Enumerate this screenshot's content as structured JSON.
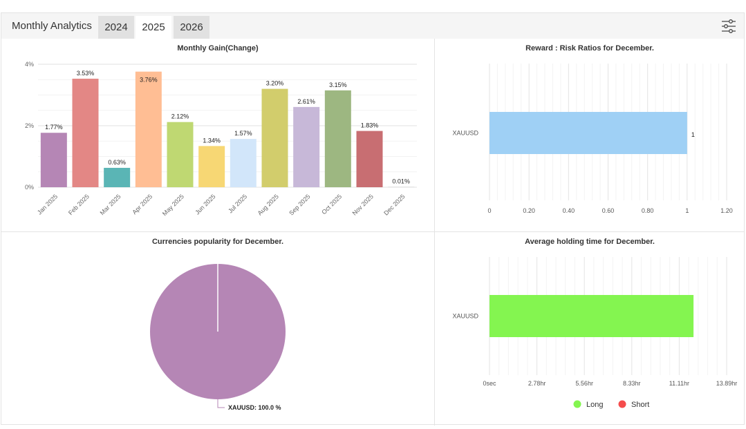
{
  "header": {
    "title": "Monthly Analytics",
    "tabs": [
      {
        "label": "2024",
        "active": false
      },
      {
        "label": "2025",
        "active": true
      },
      {
        "label": "2026",
        "active": false
      }
    ],
    "settings_icon": "sliders-icon"
  },
  "chart_data": [
    {
      "type": "bar",
      "title": "Monthly Gain(Change)",
      "categories": [
        "Jan 2025",
        "Feb 2025",
        "Mar 2025",
        "Apr 2025",
        "May 2025",
        "Jun 2025",
        "Jul 2025",
        "Aug 2025",
        "Sep 2025",
        "Oct 2025",
        "Nov 2025",
        "Dec 2025"
      ],
      "values": [
        1.77,
        3.53,
        0.63,
        3.76,
        2.12,
        1.34,
        1.57,
        3.2,
        2.61,
        3.15,
        1.83,
        0.01
      ],
      "data_labels": [
        "1.77%",
        "3.53%",
        "0.63%",
        "3.76%",
        "2.12%",
        "1.34%",
        "1.57%",
        "3.20%",
        "2.61%",
        "3.15%",
        "1.83%",
        "0.01%"
      ],
      "colors": [
        "#b586b5",
        "#e38785",
        "#5ab5b5",
        "#ffbe94",
        "#bfd872",
        "#f7d774",
        "#d2e6fa",
        "#d2cd6c",
        "#c7b8d8",
        "#9db781",
        "#c86e72",
        "#cccccc"
      ],
      "yticks": [
        "0%",
        "2%",
        "4%"
      ],
      "ylim": [
        0,
        4
      ],
      "grid": true
    },
    {
      "type": "bar",
      "orientation": "horizontal",
      "title": "Reward : Risk Ratios for December.",
      "categories": [
        "XAUUSD"
      ],
      "values": [
        1
      ],
      "data_labels": [
        "1"
      ],
      "color": "#9fd0f5",
      "xticks": [
        "0",
        "0.20",
        "0.40",
        "0.60",
        "0.80",
        "1",
        "1.20"
      ],
      "xlim": [
        0,
        1.2
      ],
      "grid": true
    },
    {
      "type": "pie",
      "title": "Currencies popularity for December.",
      "slices": [
        {
          "label": "XAUUSD",
          "value": 100.0,
          "color": "#b586b5"
        }
      ],
      "data_labels": [
        "XAUUSD: 100.0 %"
      ]
    },
    {
      "type": "bar",
      "orientation": "horizontal",
      "title": "Average holding time for December.",
      "categories": [
        "XAUUSD"
      ],
      "series": [
        {
          "name": "Long",
          "values": [
            11.95
          ],
          "color": "#84f550"
        },
        {
          "name": "Short",
          "values": [
            0
          ],
          "color": "#f54c4c"
        }
      ],
      "xticks": [
        "0sec",
        "2.78hr",
        "5.56hr",
        "8.33hr",
        "11.11hr",
        "13.89hr"
      ],
      "xlim": [
        0,
        13.89
      ],
      "x_unit": "hr",
      "legend": "bottom",
      "grid": true
    }
  ]
}
